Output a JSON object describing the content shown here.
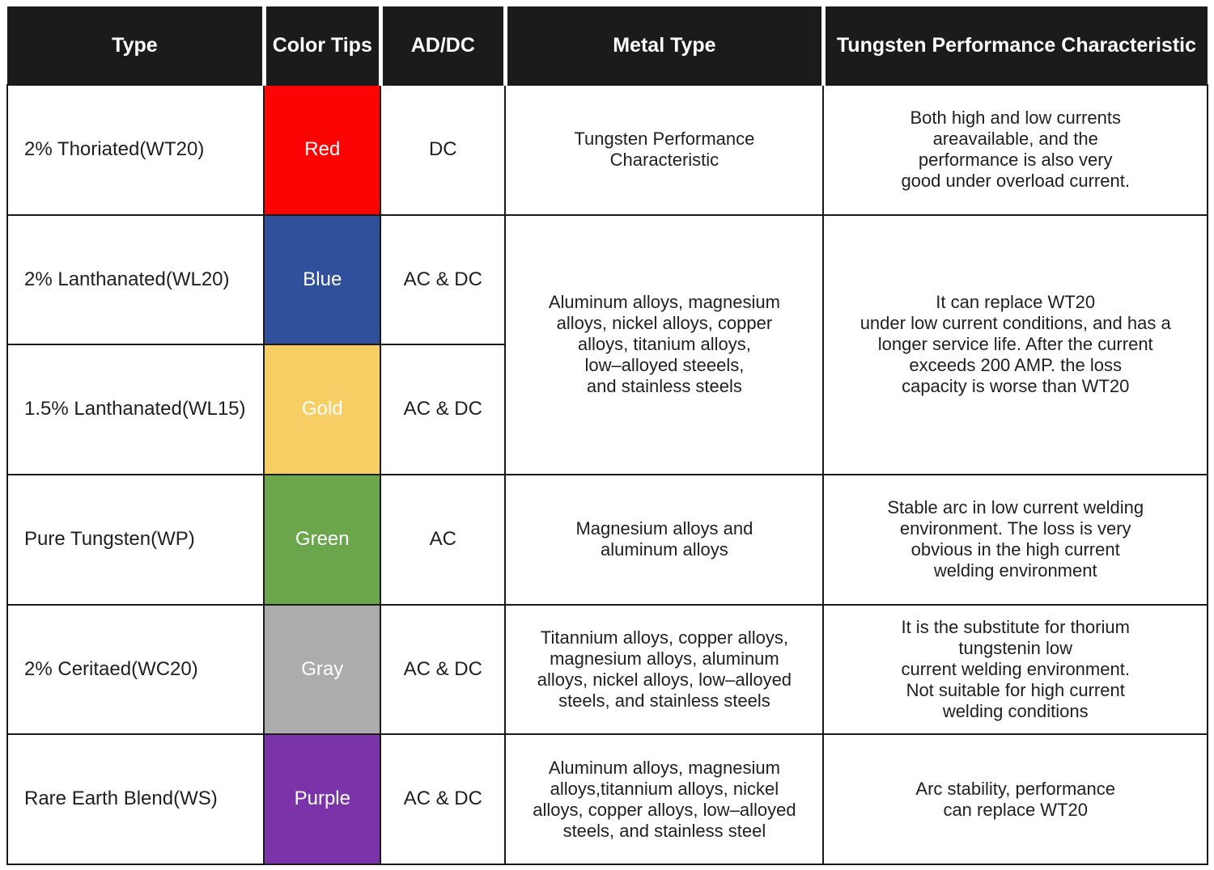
{
  "header": {
    "bg": "#1b1b1b",
    "text_color": "#ffffff",
    "columns": {
      "type": "Type",
      "color_tips": "Color Tips",
      "current": "AD/DC",
      "metal": "Metal Type",
      "performance": "Tungsten Performance Characteristic"
    }
  },
  "rows": [
    {
      "type": "2% Thoriated(WT20)",
      "color": {
        "label": "Red",
        "hex": "#fb0404"
      },
      "current": "DC",
      "metal": "Tungsten Performance\nCharacteristic",
      "performance": "Both high and low currents\nareavailable, and the\nperformance is also very\ngood under overload current."
    },
    {
      "type": "2% Lanthanated(WL20)",
      "color": {
        "label": "Blue",
        "hex": "#30509c"
      },
      "current": "AC & DC",
      "metal_shared": "Aluminum alloys, magnesium\nalloys, nickel alloys, copper\nalloys, titanium alloys,\nlow–alloyed steeels,\nand stainless steels",
      "performance_shared": "It can replace WT20\nunder low current conditions, and has a\nlonger service life. After the current\nexceeds 200 AMP. the loss\ncapacity is worse than WT20"
    },
    {
      "type": "1.5% Lanthanated(WL15)",
      "color": {
        "label": "Gold",
        "hex": "#f6ce63"
      },
      "current": "AC & DC"
    },
    {
      "type": "Pure Tungsten(WP)",
      "color": {
        "label": "Green",
        "hex": "#6ca64c"
      },
      "current": "AC",
      "metal": "Magnesium alloys and\naluminum alloys",
      "performance": "Stable arc in low current welding\nenvironment. The loss is very\nobvious in the high current\nwelding environment"
    },
    {
      "type": "2% Ceritaed(WC20)",
      "color": {
        "label": "Gray",
        "hex": "#acacac"
      },
      "current": "AC & DC",
      "metal": "Titannium alloys, copper alloys,\nmagnesium alloys, aluminum\nalloys, nickel alloys, low–alloyed\nsteels, and stainless steels",
      "performance": "It is the substitute for thorium\ntungstenin low\ncurrent welding environment.\nNot suitable for high current\nwelding conditions"
    },
    {
      "type": "Rare Earth Blend(WS)",
      "color": {
        "label": "Purple",
        "hex": "#7b33a9"
      },
      "current": "AC & DC",
      "metal": "Aluminum alloys, magnesium\nalloys,titannium alloys, nickel\nalloys, copper alloys, low–alloyed\nsteels, and stainless steel",
      "performance": "Arc stability, performance\ncan replace WT20"
    }
  ]
}
